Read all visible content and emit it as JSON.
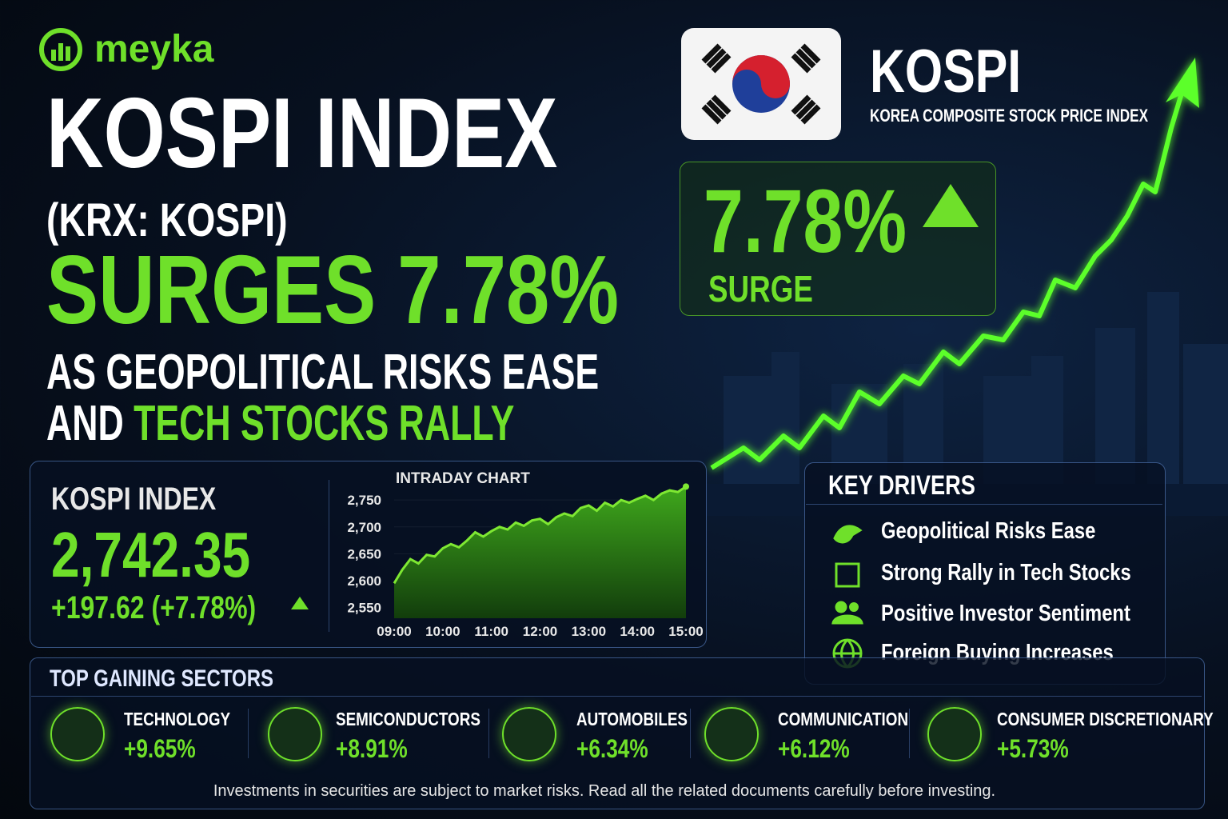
{
  "brand": "meyka",
  "headline": {
    "line1": "KOSPI INDEX",
    "line2": "(KRX: KOSPI)",
    "line3": "SURGES 7.78%",
    "line4": "AS GEOPOLITICAL RISKS EASE",
    "line5_start": "AND",
    "line5_end": "TECH STOCKS RALLY"
  },
  "badge": {
    "title": "KOSPI",
    "subtitle": "KOREA COMPOSITE STOCK PRICE INDEX",
    "change": "7.78%",
    "change_label": "SURGE"
  },
  "index_panel": {
    "label": "KOSPI INDEX",
    "value": "2,742.35",
    "change": "+197.62 (+7.78%)"
  },
  "chart_data": {
    "type": "area",
    "title": "INTRADAY CHART",
    "color": "#7ee832",
    "categories": [
      "09:00",
      null,
      null,
      null,
      null,
      null,
      "10:00",
      null,
      null,
      null,
      null,
      null,
      "11:00",
      null,
      null,
      null,
      null,
      null,
      "12:00",
      null,
      null,
      null,
      null,
      null,
      "13:00",
      null,
      null,
      null,
      null,
      null,
      "14:00",
      null,
      null,
      null,
      null,
      null,
      "15:00"
    ],
    "values": [
      2595,
      2620,
      2640,
      2632,
      2648,
      2645,
      2660,
      2668,
      2662,
      2675,
      2690,
      2682,
      2692,
      2700,
      2695,
      2708,
      2702,
      2712,
      2715,
      2705,
      2718,
      2725,
      2720,
      2735,
      2740,
      2730,
      2745,
      2738,
      2750,
      2745,
      2752,
      2758,
      2750,
      2762,
      2768,
      2765,
      2775
    ],
    "ylim": [
      2530,
      2780
    ],
    "yticks": [
      {
        "value": 2550,
        "label": "2,550"
      },
      {
        "value": 2600,
        "label": "2,600"
      },
      {
        "value": 2650,
        "label": "2,650"
      },
      {
        "value": 2700,
        "label": "2,700"
      },
      {
        "value": 2750,
        "label": "2,750"
      }
    ]
  },
  "key_drivers": {
    "title": "KEY DRIVERS",
    "items": [
      "Geopolitical Risks Ease",
      "Strong Rally in Tech Stocks",
      "Positive Investor Sentiment",
      "Foreign Buying Increases"
    ]
  },
  "sectors": {
    "title": "TOP GAINING SECTORS",
    "items": [
      {
        "name": "TECHNOLOGY",
        "change": "+9.65%"
      },
      {
        "name": "SEMICONDUCTORS",
        "change": "+8.91%"
      },
      {
        "name": "AUTOMOBILES",
        "change": "+6.34%"
      },
      {
        "name": "COMMUNICATION",
        "change": "+6.12%"
      },
      {
        "name": "CONSUMER DISCRETIONARY",
        "change": "+5.73%"
      }
    ]
  },
  "disclaimer": "Investments in securities are subject to market risks. Read all the related documents carefully before investing."
}
